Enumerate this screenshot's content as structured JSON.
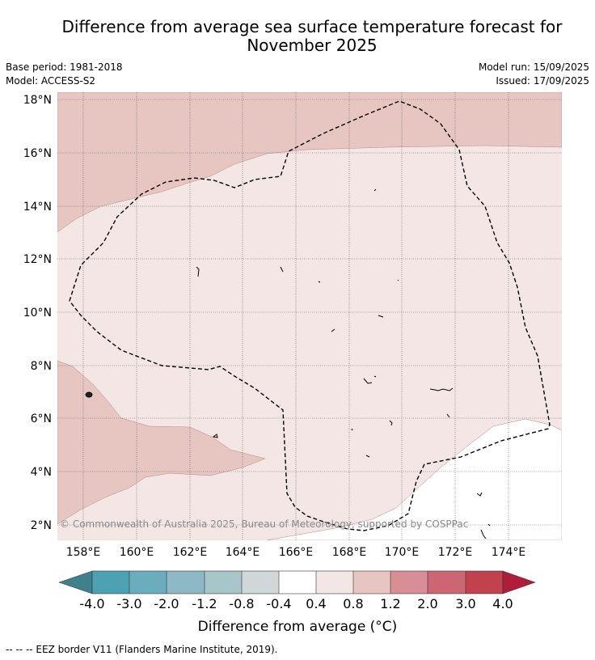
{
  "title": "Difference from average sea surface temperature forecast for November 2025",
  "meta": {
    "base_period": "Base period: 1981-2018",
    "model": "Model: ACCESS-S2",
    "model_run": "Model run: 15/09/2025",
    "issued": "Issued: 17/09/2025"
  },
  "map": {
    "lat_labels": [
      "18°N",
      "16°N",
      "14°N",
      "12°N",
      "10°N",
      "8°N",
      "6°N",
      "4°N",
      "2°N"
    ],
    "lon_labels": [
      "158°E",
      "160°E",
      "162°E",
      "164°E",
      "166°E",
      "168°E",
      "170°E",
      "172°E",
      "174°E"
    ],
    "copyright": "© Commonwealth of Australia 2025, Bureau of Meteorology, supported by COSPPac",
    "colors": {
      "anomaly_0_4_to_0_8": "#f4e6e5",
      "anomaly_0_8_to_1_2": "#e7c6c2",
      "anomaly_minus_0_4_to_0_4": "#ffffff",
      "eez_border": "#000000",
      "gridline": "#555555"
    }
  },
  "colorbar": {
    "tick_labels": [
      "-4.0",
      "-3.0",
      "-2.0",
      "-1.2",
      "-0.8",
      "-0.4",
      "0.4",
      "0.8",
      "1.2",
      "2.0",
      "3.0",
      "4.0"
    ],
    "colors": [
      "#3f808c",
      "#4aa2b3",
      "#6aaebe",
      "#8db8c4",
      "#a8c5ca",
      "#d0d7d8",
      "#ffffff",
      "#f4e6e5",
      "#e7c6c2",
      "#d78e94",
      "#cc6670",
      "#c1414f",
      "#b01c3c"
    ],
    "label": "Difference from average (°C)"
  },
  "footer": "--  --  -- EEZ border V11 (Flanders Marine Institute, 2019)."
}
